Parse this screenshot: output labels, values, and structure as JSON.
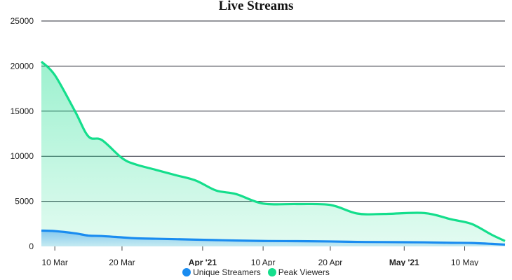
{
  "chart_data": {
    "type": "area",
    "title": "Live Streams",
    "xlabel": "",
    "ylabel": "",
    "x": [
      "2021-03-08",
      "2021-03-10",
      "2021-03-13",
      "2021-03-15",
      "2021-03-17",
      "2021-03-20",
      "2021-03-22",
      "2021-03-25",
      "2021-03-28",
      "2021-03-31",
      "2021-04-03",
      "2021-04-06",
      "2021-04-10",
      "2021-04-15",
      "2021-04-20",
      "2021-04-24",
      "2021-04-28",
      "2021-05-04",
      "2021-05-08",
      "2021-05-11",
      "2021-05-14",
      "2021-05-16"
    ],
    "series": [
      {
        "name": "Unique Streamers",
        "color": "#1a8cf0",
        "values": [
          1750,
          1700,
          1450,
          1200,
          1150,
          1000,
          900,
          850,
          800,
          750,
          700,
          650,
          600,
          580,
          550,
          500,
          480,
          450,
          400,
          380,
          280,
          200
        ]
      },
      {
        "name": "Peak Viewers",
        "color": "#14de8c",
        "values": [
          20500,
          19000,
          15000,
          12200,
          11800,
          9800,
          9100,
          8500,
          7900,
          7300,
          6200,
          5800,
          4750,
          4700,
          4600,
          3650,
          3600,
          3700,
          3000,
          2500,
          1300,
          600
        ]
      }
    ],
    "ylim": [
      0,
      25000
    ],
    "yticks": [
      "0",
      "5000",
      "10000",
      "15000",
      "20000",
      "25000"
    ],
    "xticks": [
      {
        "label": "10 Mar",
        "date": "2021-03-10",
        "bold": false
      },
      {
        "label": "20 Mar",
        "date": "2021-03-20",
        "bold": false
      },
      {
        "label": "Apr '21",
        "date": "2021-04-01",
        "bold": true
      },
      {
        "label": "10 Apr",
        "date": "2021-04-10",
        "bold": false
      },
      {
        "label": "20 Apr",
        "date": "2021-04-20",
        "bold": false
      },
      {
        "label": "May '21",
        "date": "2021-05-01",
        "bold": true
      },
      {
        "label": "10 May",
        "date": "2021-05-10",
        "bold": false
      }
    ],
    "xlim": [
      "2021-03-08",
      "2021-05-16"
    ],
    "grid": true,
    "legend": "bottom-center"
  }
}
